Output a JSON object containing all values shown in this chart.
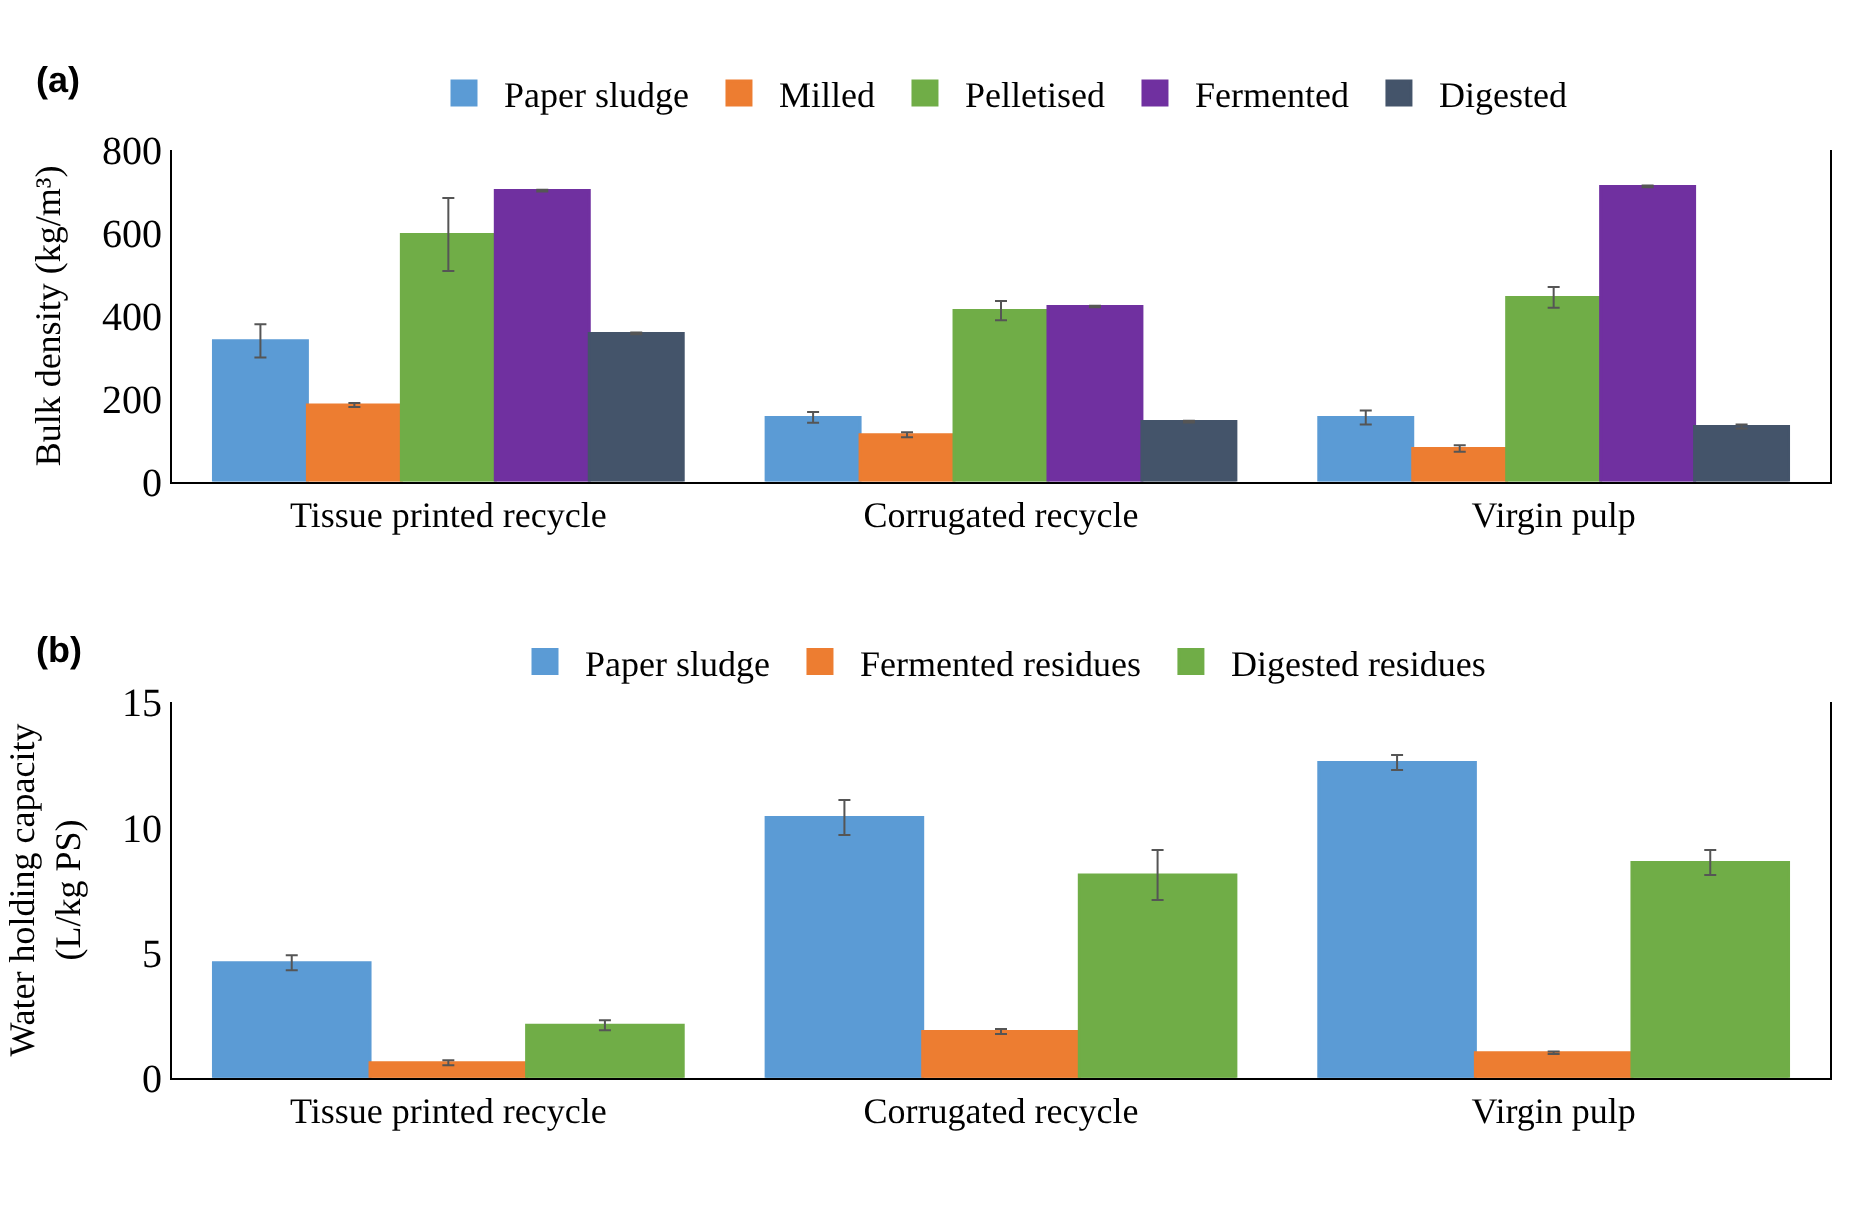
{
  "chart_data": [
    {
      "type": "bar",
      "title": "(a)",
      "ylabel": "Bulk density (kg/m³)",
      "categories": [
        "Tissue printed recycle",
        "Corrugated recycle",
        "Virgin pulp"
      ],
      "ylim": [
        0,
        800
      ],
      "yticks": [
        0,
        200,
        400,
        600,
        800
      ],
      "grid": false,
      "legend": "top",
      "series": [
        {
          "name": "Paper sludge",
          "color": "#5b9bd5",
          "values": [
            340,
            155,
            155
          ],
          "errors": [
            40,
            13,
            17
          ]
        },
        {
          "name": "Milled",
          "color": "#ed7d31",
          "values": [
            185,
            113,
            80
          ],
          "errors": [
            5,
            6,
            8
          ]
        },
        {
          "name": "Pelletised",
          "color": "#70ad47",
          "values": [
            597,
            413,
            445
          ],
          "errors": [
            88,
            23,
            25
          ]
        },
        {
          "name": "Fermented",
          "color": "#7030a0",
          "values": [
            703,
            423,
            713
          ],
          "errors": [
            2,
            2,
            2
          ]
        },
        {
          "name": "Digested",
          "color": "#44546a",
          "values": [
            358,
            145,
            133
          ],
          "errors": [
            2,
            2,
            5
          ]
        }
      ]
    },
    {
      "type": "bar",
      "title": "(b)",
      "ylabel": "Water holding capacity\n(L/kg PS)",
      "categories": [
        "Tissue printed recycle",
        "Corrugated recycle",
        "Virgin pulp"
      ],
      "ylim": [
        0,
        15
      ],
      "yticks": [
        0,
        5,
        10,
        15
      ],
      "grid": false,
      "legend": "top",
      "series": [
        {
          "name": "Paper sludge",
          "color": "#5b9bd5",
          "values": [
            4.6,
            10.4,
            12.6
          ],
          "errors": [
            0.3,
            0.7,
            0.3
          ]
        },
        {
          "name": "Fermented residues",
          "color": "#ed7d31",
          "values": [
            0.6,
            1.85,
            1.0
          ],
          "errors": [
            0.1,
            0.1,
            0.05
          ]
        },
        {
          "name": "Digested residues",
          "color": "#70ad47",
          "values": [
            2.1,
            8.1,
            8.6
          ],
          "errors": [
            0.2,
            1.0,
            0.5
          ]
        }
      ]
    }
  ]
}
